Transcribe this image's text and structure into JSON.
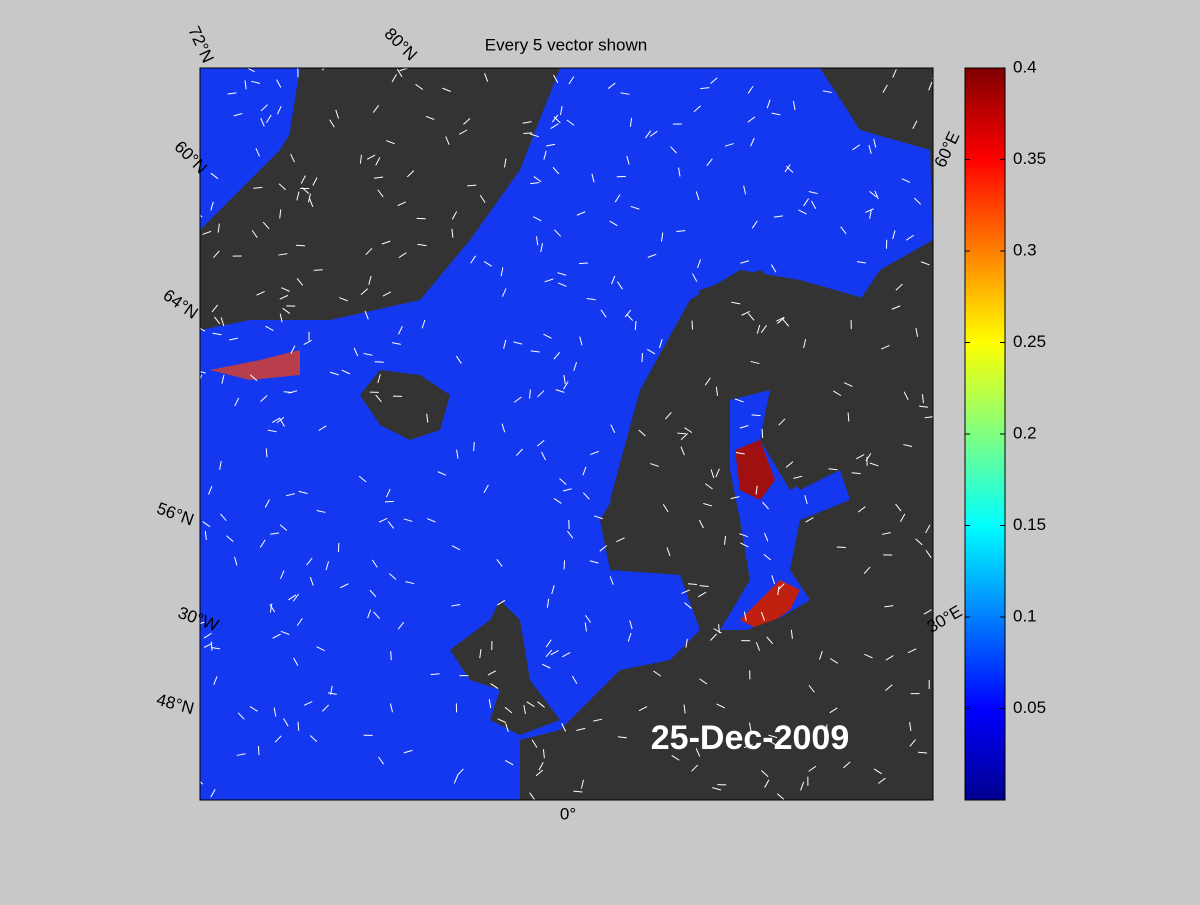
{
  "map": {
    "title": "Every 5 vector shown",
    "date_label": "25-Dec-2009",
    "graticule_labels": [
      "72°N",
      "80°N",
      "60°N",
      "64°N",
      "56°N",
      "30°W",
      "48°N",
      "0°",
      "30°E",
      "60°E"
    ],
    "colorbar": {
      "colormap": "jet",
      "lim": [
        0,
        0.4
      ],
      "ticks": [
        0.05,
        0.1,
        0.15,
        0.2,
        0.25,
        0.3,
        0.35,
        0.4
      ]
    }
  }
}
